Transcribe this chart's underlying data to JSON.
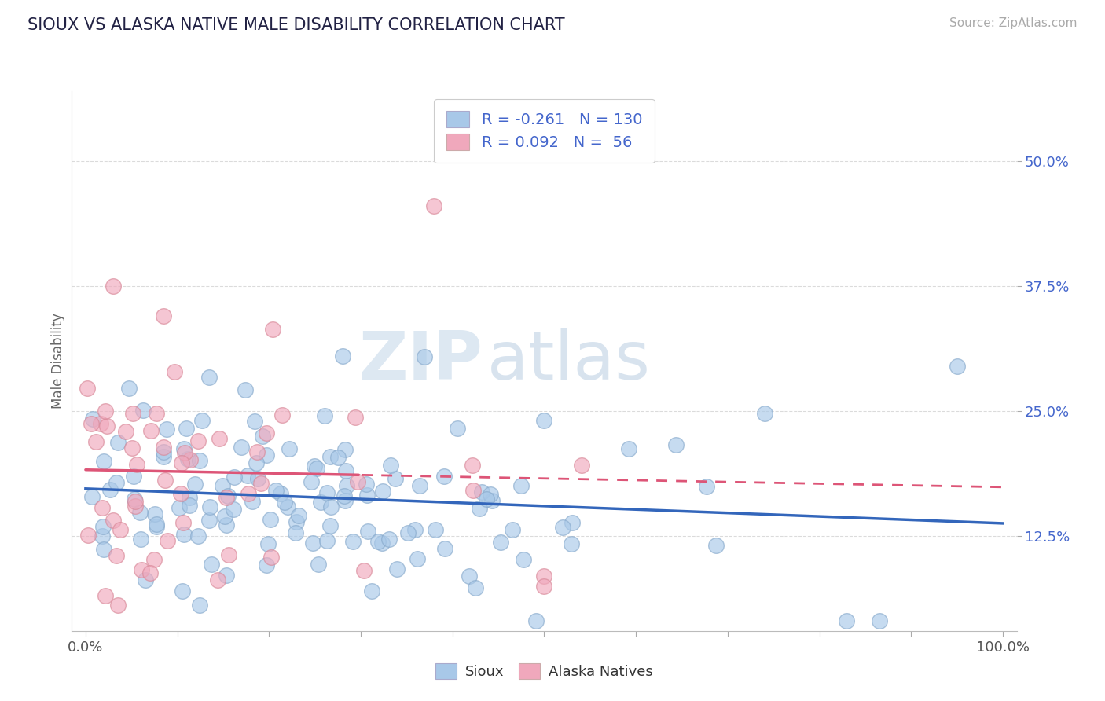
{
  "title": "SIOUX VS ALASKA NATIVE MALE DISABILITY CORRELATION CHART",
  "source": "Source: ZipAtlas.com",
  "ylabel": "Male Disability",
  "sioux_color": "#a8c8e8",
  "alaska_color": "#f0a8bc",
  "sioux_edge_color": "#88aacc",
  "alaska_edge_color": "#d88898",
  "sioux_line_color": "#3366bb",
  "alaska_line_color": "#dd5577",
  "legend_text_color": "#4466cc",
  "title_color": "#222244",
  "watermark_zip": "ZIP",
  "watermark_atlas": "atlas",
  "sioux_R": -0.261,
  "sioux_N": 130,
  "alaska_R": 0.092,
  "alaska_N": 56,
  "ytick_positions": [
    0.125,
    0.25,
    0.375,
    0.5
  ],
  "ytick_labels": [
    "12.5%",
    "25.0%",
    "37.5%",
    "50.0%"
  ],
  "xlim": [
    -0.015,
    1.015
  ],
  "ylim": [
    0.03,
    0.57
  ]
}
